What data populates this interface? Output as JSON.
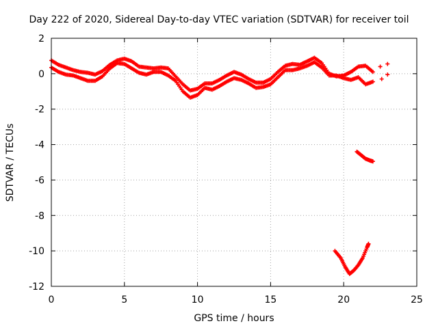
{
  "chart_data": {
    "type": "scatter",
    "title": "Day 222 of 2020, Sidereal Day-to-day VTEC variation (SDTVAR) for receiver toil",
    "xlabel": "GPS time / hours",
    "ylabel": "SDTVAR / TECUs",
    "xlim": [
      0,
      25
    ],
    "ylim": [
      -12,
      2
    ],
    "xticks": [
      0,
      5,
      10,
      15,
      20,
      25
    ],
    "yticks": [
      2,
      0,
      -2,
      -4,
      -6,
      -8,
      -10,
      -12
    ],
    "grid": true,
    "marker": "plus",
    "color": "#ff0000",
    "series": [
      {
        "name": "track-1",
        "points": [
          [
            0,
            0.75
          ],
          [
            0.5,
            0.5
          ],
          [
            1,
            0.35
          ],
          [
            1.5,
            0.2
          ],
          [
            2,
            0.1
          ],
          [
            2.5,
            0.05
          ],
          [
            3,
            -0.05
          ],
          [
            3.5,
            0.15
          ],
          [
            4,
            0.5
          ],
          [
            4.5,
            0.75
          ],
          [
            5,
            0.85
          ],
          [
            5.5,
            0.7
          ],
          [
            6,
            0.4
          ],
          [
            6.5,
            0.35
          ],
          [
            7,
            0.3
          ],
          [
            7.5,
            0.35
          ],
          [
            8,
            0.3
          ],
          [
            8.5,
            -0.15
          ],
          [
            9,
            -0.6
          ],
          [
            9.5,
            -0.95
          ],
          [
            10,
            -0.85
          ],
          [
            10.5,
            -0.55
          ],
          [
            11,
            -0.55
          ],
          [
            11.5,
            -0.35
          ],
          [
            12,
            -0.1
          ],
          [
            12.5,
            0.1
          ],
          [
            13,
            -0.05
          ],
          [
            13.5,
            -0.3
          ],
          [
            14,
            -0.5
          ],
          [
            14.5,
            -0.5
          ],
          [
            15,
            -0.3
          ],
          [
            15.5,
            0.1
          ],
          [
            16,
            0.45
          ],
          [
            16.5,
            0.55
          ],
          [
            17,
            0.5
          ],
          [
            17.5,
            0.7
          ],
          [
            18,
            0.9
          ],
          [
            18.5,
            0.6
          ],
          [
            19,
            0.0
          ],
          [
            19.5,
            -0.15
          ],
          [
            20,
            -0.1
          ],
          [
            20.5,
            0.1
          ],
          [
            21,
            0.4
          ],
          [
            21.5,
            0.45
          ],
          [
            22,
            0.1
          ]
        ]
      },
      {
        "name": "track-2",
        "points": [
          [
            0,
            0.35
          ],
          [
            0.5,
            0.1
          ],
          [
            1,
            -0.05
          ],
          [
            1.5,
            -0.1
          ],
          [
            2,
            -0.25
          ],
          [
            2.5,
            -0.4
          ],
          [
            3,
            -0.4
          ],
          [
            3.5,
            -0.15
          ],
          [
            4,
            0.3
          ],
          [
            4.5,
            0.6
          ],
          [
            5,
            0.55
          ],
          [
            5.5,
            0.3
          ],
          [
            6,
            0.05
          ],
          [
            6.5,
            -0.05
          ],
          [
            7,
            0.1
          ],
          [
            7.5,
            0.1
          ],
          [
            8,
            -0.1
          ],
          [
            8.5,
            -0.4
          ],
          [
            9,
            -1.0
          ],
          [
            9.5,
            -1.35
          ],
          [
            10,
            -1.2
          ],
          [
            10.5,
            -0.8
          ],
          [
            11,
            -0.9
          ],
          [
            11.5,
            -0.7
          ],
          [
            12,
            -0.45
          ],
          [
            12.5,
            -0.25
          ],
          [
            13,
            -0.35
          ],
          [
            13.5,
            -0.55
          ],
          [
            14,
            -0.8
          ],
          [
            14.5,
            -0.75
          ],
          [
            15,
            -0.6
          ],
          [
            15.5,
            -0.2
          ],
          [
            16,
            0.2
          ],
          [
            16.5,
            0.2
          ],
          [
            17,
            0.3
          ],
          [
            17.5,
            0.45
          ],
          [
            18,
            0.65
          ],
          [
            18.5,
            0.35
          ],
          [
            19,
            -0.1
          ],
          [
            19.5,
            -0.1
          ],
          [
            20,
            -0.25
          ],
          [
            20.5,
            -0.35
          ],
          [
            21,
            -0.2
          ],
          [
            21.5,
            -0.6
          ],
          [
            22,
            -0.45
          ]
        ]
      },
      {
        "name": "track-3",
        "points": [
          [
            22.5,
            0.4
          ],
          [
            23,
            0.55
          ],
          [
            22.6,
            -0.3
          ],
          [
            23,
            -0.05
          ]
        ]
      },
      {
        "name": "track-4",
        "points": [
          [
            20.9,
            -4.4
          ],
          [
            21.2,
            -4.6
          ],
          [
            21.5,
            -4.8
          ],
          [
            21.8,
            -4.9
          ],
          [
            22.0,
            -4.95
          ]
        ]
      },
      {
        "name": "track-5",
        "points": [
          [
            19.4,
            -10.0
          ],
          [
            19.8,
            -10.4
          ],
          [
            20.1,
            -10.9
          ],
          [
            20.4,
            -11.3
          ],
          [
            20.7,
            -11.1
          ],
          [
            21.0,
            -10.8
          ],
          [
            21.3,
            -10.4
          ],
          [
            21.6,
            -9.8
          ],
          [
            21.7,
            -9.6
          ]
        ]
      }
    ]
  }
}
